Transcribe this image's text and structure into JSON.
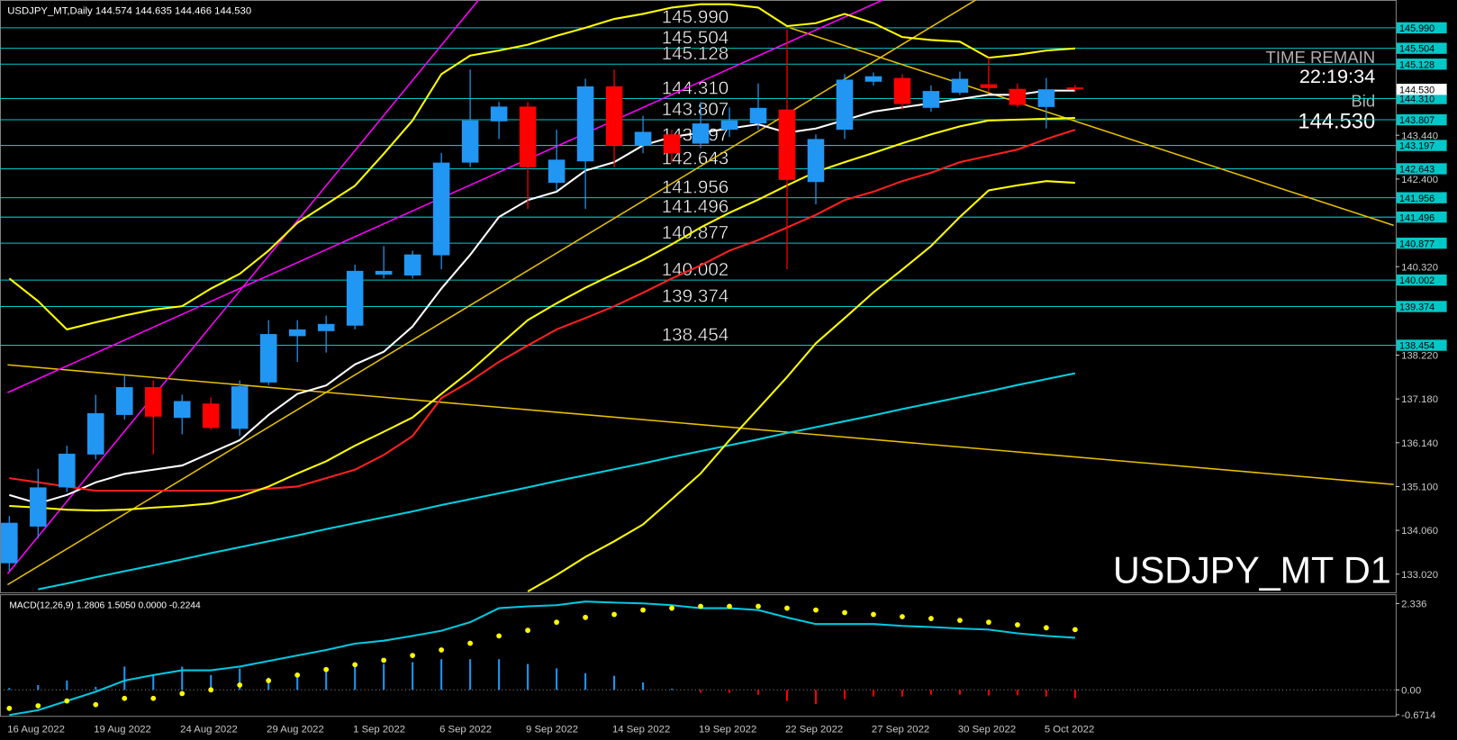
{
  "chart_data": [
    {
      "type": "candlestick",
      "title": "USDJPY_MT,Daily 144.574 144.635 144.466 144.530",
      "watermark": "USDJPY_MT D1",
      "time_remain_label": "TIME REMAIN",
      "time_remain": "22:19:34",
      "bid_label": "Bid",
      "bid": {
        "value": 144.53,
        "label": "144.530"
      },
      "categories": [
        "16 Aug 2022",
        null,
        null,
        "19 Aug 2022",
        null,
        null,
        "24 Aug 2022",
        null,
        null,
        "29 Aug 2022",
        null,
        null,
        "1 Sep 2022",
        null,
        null,
        "6 Sep 2022",
        null,
        null,
        "9 Sep 2022",
        null,
        null,
        "14 Sep 2022",
        null,
        null,
        "19 Sep 2022",
        null,
        null,
        "22 Sep 2022",
        null,
        null,
        "27 Sep 2022",
        null,
        null,
        "30 Sep 2022",
        null,
        null,
        "5 Oct 2022",
        null
      ],
      "open": [
        133.28,
        134.15,
        135.08,
        135.86,
        136.8,
        137.46,
        136.73,
        137.07,
        136.47,
        137.57,
        138.67,
        138.79,
        138.92,
        140.13,
        140.11,
        140.59,
        142.79,
        143.77,
        144.12,
        142.31,
        142.82,
        144.6,
        143.19,
        143.46,
        143.24,
        143.57,
        143.72,
        144.05,
        142.33,
        143.57,
        144.71,
        144.8,
        144.09,
        144.45,
        144.65,
        144.54,
        144.11,
        144.574
      ],
      "high": [
        134.4,
        135.52,
        136.07,
        137.28,
        137.73,
        137.62,
        137.28,
        137.22,
        137.62,
        139.05,
        139.05,
        139.16,
        140.37,
        140.81,
        140.7,
        143.02,
        145.0,
        144.23,
        144.23,
        143.57,
        144.78,
        145.0,
        143.9,
        143.57,
        144.23,
        144.1,
        144.67,
        145.95,
        143.46,
        144.89,
        144.93,
        144.89,
        144.62,
        144.95,
        145.28,
        144.67,
        144.8,
        144.635
      ],
      "low": [
        133.1,
        133.87,
        134.97,
        135.74,
        136.69,
        135.86,
        136.34,
        136.45,
        136.3,
        137.51,
        138.06,
        138.28,
        138.83,
        140.04,
        140.04,
        140.26,
        142.68,
        143.35,
        141.69,
        142.13,
        141.69,
        142.68,
        143.01,
        142.79,
        143.13,
        143.4,
        143.57,
        140.26,
        141.8,
        143.35,
        144.62,
        144.05,
        144.0,
        144.4,
        144.45,
        144.1,
        143.6,
        144.466
      ],
      "close": [
        134.24,
        135.08,
        135.88,
        136.84,
        137.46,
        136.76,
        137.13,
        136.49,
        137.48,
        138.72,
        138.83,
        138.96,
        140.22,
        140.22,
        140.61,
        142.79,
        143.79,
        144.12,
        142.68,
        142.86,
        144.6,
        143.19,
        143.52,
        143.01,
        143.72,
        143.79,
        144.09,
        142.38,
        143.35,
        144.76,
        144.84,
        144.18,
        144.49,
        144.78,
        144.56,
        144.16,
        144.53,
        144.53
      ],
      "up_color": "#2196f3",
      "down_color": "#ff0000",
      "ylim": [
        132.61,
        146.65
      ],
      "yticks": [
        {
          "value": 143.44,
          "label": "143.440"
        },
        {
          "value": 142.4,
          "label": "142.400"
        },
        {
          "value": 140.32,
          "label": "140.320"
        },
        {
          "value": 138.22,
          "label": "138.220"
        },
        {
          "value": 137.18,
          "label": "137.180"
        },
        {
          "value": 136.14,
          "label": "136.140"
        },
        {
          "value": 135.1,
          "label": "135.100"
        },
        {
          "value": 134.06,
          "label": "134.060"
        },
        {
          "value": 133.02,
          "label": "133.020"
        }
      ],
      "levels": [
        {
          "value": 145.99,
          "label": "145.990"
        },
        145.504,
        145.128,
        {
          "value": 144.31,
          "label": "144.310"
        },
        143.807,
        143.197,
        142.643,
        141.956,
        141.496,
        140.877,
        140.002,
        139.374,
        138.454
      ],
      "level_color": "#00c8c8",
      "series": [
        {
          "color": "#ffffff",
          "values": [
            134.9,
            134.7,
            134.9,
            135.2,
            135.4,
            135.5,
            135.6,
            135.9,
            136.2,
            136.8,
            137.3,
            137.5,
            138.0,
            138.3,
            138.9,
            139.8,
            140.6,
            141.5,
            141.9,
            142.1,
            142.6,
            142.8,
            143.2,
            143.4,
            143.5,
            143.6,
            143.7,
            143.5,
            143.6,
            143.8,
            144.0,
            144.1,
            144.2,
            144.3,
            144.4,
            144.4,
            144.5,
            144.5
          ]
        },
        {
          "color": "#ff2020",
          "values": [
            135.3,
            135.2,
            135.1,
            135.0,
            135.0,
            135.0,
            135.0,
            135.0,
            135.0,
            135.05,
            135.1,
            135.3,
            135.5,
            135.85,
            136.3,
            137.2,
            137.6,
            138.06,
            138.45,
            138.83,
            139.1,
            139.38,
            139.7,
            140.04,
            140.35,
            140.7,
            140.95,
            141.25,
            141.55,
            141.9,
            142.1,
            142.35,
            142.55,
            142.8,
            142.95,
            143.1,
            143.35,
            143.57
          ]
        },
        {
          "color": "#00d0e0",
          "values": [
            null,
            132.66,
            132.8,
            132.95,
            133.09,
            133.23,
            133.37,
            133.52,
            133.66,
            133.8,
            133.94,
            134.09,
            134.23,
            134.37,
            134.51,
            134.66,
            134.8,
            134.94,
            135.08,
            135.23,
            135.37,
            135.51,
            135.65,
            135.8,
            135.94,
            136.08,
            136.22,
            136.37,
            136.51,
            136.65,
            136.79,
            136.94,
            137.08,
            137.22,
            137.36,
            137.51,
            137.65,
            137.79
          ]
        },
        {
          "color": "#ffff00",
          "values": [
            140.04,
            139.5,
            138.83,
            139.0,
            139.16,
            139.3,
            139.38,
            139.8,
            140.15,
            140.7,
            141.36,
            141.8,
            142.24,
            143.0,
            143.79,
            144.89,
            145.33,
            145.45,
            145.59,
            145.8,
            145.99,
            146.2,
            146.32,
            146.47,
            146.55,
            146.55,
            146.47,
            146.03,
            146.1,
            146.32,
            146.1,
            145.77,
            145.7,
            145.66,
            145.28,
            145.35,
            145.45,
            145.5
          ]
        },
        {
          "color": "#ffff00",
          "values": [
            134.64,
            134.6,
            134.55,
            134.53,
            134.55,
            134.6,
            134.64,
            134.7,
            134.86,
            135.1,
            135.41,
            135.7,
            136.07,
            136.4,
            136.74,
            137.3,
            137.84,
            138.45,
            139.05,
            139.45,
            139.82,
            140.15,
            140.48,
            140.85,
            141.25,
            141.6,
            141.91,
            142.25,
            142.57,
            142.8,
            143.02,
            143.25,
            143.46,
            143.65,
            143.79,
            143.81,
            143.83,
            143.85
          ]
        },
        {
          "color": "#ffff00",
          "values": [
            null,
            null,
            null,
            null,
            null,
            null,
            null,
            null,
            null,
            null,
            null,
            null,
            null,
            null,
            null,
            null,
            null,
            null,
            132.61,
            133.0,
            133.43,
            133.8,
            134.2,
            134.8,
            135.41,
            136.2,
            136.95,
            137.7,
            138.5,
            139.1,
            139.71,
            140.25,
            140.81,
            141.5,
            142.13,
            142.25,
            142.35,
            142.31
          ]
        }
      ],
      "trendlines": [
        {
          "color": "#e8c000",
          "x": [
            -0.06,
            48.06
          ],
          "values": [
            137.99,
            135.15
          ]
        },
        {
          "color": "#e8c000",
          "x": [
            27.1,
            48.06
          ],
          "values": [
            145.99,
            141.3
          ]
        },
        {
          "color": "#e8c000",
          "x": [
            -0.06,
            33.55
          ],
          "values": [
            132.77,
            146.65
          ]
        },
        {
          "color": "#ff00ff",
          "x": [
            -0.06,
            16.29
          ],
          "values": [
            133.03,
            146.65
          ]
        },
        {
          "color": "#ff00ff",
          "x": [
            -0.06,
            30.32
          ],
          "values": [
            137.33,
            146.65
          ]
        }
      ]
    },
    {
      "type": "macd",
      "title": "MACD(12,26,9) 1.2806 1.5050 0.0000 -0.2244",
      "ylim": [
        -0.678,
        2.587
      ],
      "yticks": [
        2.336,
        {
          "value": 0,
          "label": "0.00"
        },
        -0.6714
      ],
      "histogram": {
        "up_color": "#2196f3",
        "down_color": "#ff0000",
        "values": [
          0.05,
          0.13,
          0.25,
          0.08,
          0.63,
          0.4,
          0.63,
          0.4,
          0.58,
          0.33,
          0.45,
          0.58,
          0.7,
          0.7,
          0.75,
          0.83,
          0.83,
          0.83,
          0.7,
          0.58,
          0.45,
          0.38,
          0.2,
          0.03,
          -0.08,
          -0.08,
          -0.13,
          -0.3,
          -0.38,
          -0.25,
          -0.18,
          -0.18,
          -0.13,
          -0.13,
          -0.15,
          -0.15,
          -0.18,
          -0.2244
        ]
      },
      "series": [
        {
          "color": "#00c8e0",
          "marker": "line",
          "values": [
            -0.68,
            -0.55,
            -0.3,
            -0.05,
            0.25,
            0.4,
            0.53,
            0.53,
            0.63,
            0.78,
            0.93,
            1.08,
            1.25,
            1.33,
            1.46,
            1.6,
            1.83,
            2.21,
            2.26,
            2.29,
            2.39,
            2.36,
            2.34,
            2.29,
            2.21,
            2.21,
            2.16,
            1.96,
            1.78,
            1.78,
            1.78,
            1.73,
            1.7,
            1.66,
            1.63,
            1.53,
            1.46,
            1.41
          ]
        },
        {
          "color": "#ffff00",
          "marker": "dot",
          "values": [
            -0.5,
            -0.43,
            -0.3,
            -0.4,
            -0.23,
            -0.23,
            -0.1,
            0.0,
            0.13,
            0.25,
            0.4,
            0.55,
            0.68,
            0.8,
            0.93,
            1.08,
            1.26,
            1.46,
            1.61,
            1.83,
            1.96,
            2.04,
            2.16,
            2.21,
            2.26,
            2.26,
            2.26,
            2.21,
            2.16,
            2.09,
            2.04,
            1.98,
            1.93,
            1.88,
            1.83,
            1.76,
            1.68,
            1.63
          ]
        }
      ]
    }
  ]
}
